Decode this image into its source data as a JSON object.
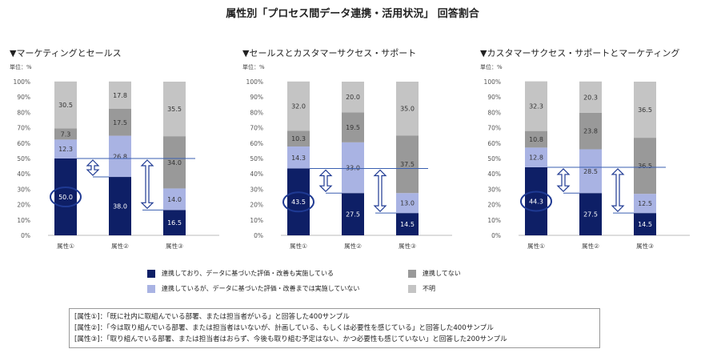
{
  "page_title": "属性別「プロセス間データ連携・活用状況」 回答割合",
  "unit_label": "単位：%",
  "legend": [
    {
      "label": "連携しており、データに基づいた評価・改善も実施している",
      "color": "#0e1f66"
    },
    {
      "label": "連携しているが、データに基づいた評価・改善までは実施していない",
      "color": "#a9b3e3"
    },
    {
      "label": "連携してない",
      "color": "#999999"
    },
    {
      "label": "不明",
      "color": "#c4c4c4"
    }
  ],
  "notes": [
    "[属性①]：「既に社内に取組んでいる部署、または担当者がいる」と回答した400サンプル",
    "[属性②]：「今は取り組んでいる部署、または担当者はいないが、計画している、もしくは必要性を感じている」と回答した400サンプル",
    "[属性③]：「取り組んでいる部署、または担当者はおらず、今後も取り組む予定はない、かつ必要性も感じていない」と回答した200サンプル"
  ],
  "chart_data": [
    {
      "type": "bar",
      "stacked": true,
      "title": "▼マーケティングとセールス",
      "ylabel": "単位：%",
      "ylim": [
        0,
        100
      ],
      "yticks": [
        "0%",
        "10%",
        "20%",
        "30%",
        "40%",
        "50%",
        "60%",
        "70%",
        "80%",
        "90%",
        "100%"
      ],
      "categories": [
        "属性①",
        "属性②",
        "属性③"
      ],
      "series": [
        {
          "name": "連携しており、データに基づいた評価・改善も実施している",
          "values": [
            50.0,
            38.0,
            16.5
          ],
          "labels": [
            "50.0",
            "38.0",
            "16.5"
          ]
        },
        {
          "name": "連携しているが、データに基づいた評価・改善までは実施していない",
          "values": [
            12.3,
            26.8,
            14.0
          ],
          "labels": [
            "12.3",
            "26.8",
            "14.0"
          ]
        },
        {
          "name": "連携してない",
          "values": [
            7.3,
            17.5,
            34.0
          ],
          "labels": [
            "7.3",
            "17.5",
            "34.0"
          ]
        },
        {
          "name": "不明",
          "values": [
            30.5,
            17.8,
            35.5
          ],
          "labels": [
            "30.5",
            "17.8",
            "35.5"
          ]
        }
      ],
      "highlight_category": 0
    },
    {
      "type": "bar",
      "stacked": true,
      "title": "▼セールスとカスタマーサクセス・サポート",
      "ylabel": "単位：%",
      "ylim": [
        0,
        100
      ],
      "yticks": [
        "0%",
        "10%",
        "20%",
        "30%",
        "40%",
        "50%",
        "60%",
        "70%",
        "80%",
        "90%",
        "100%"
      ],
      "categories": [
        "属性①",
        "属性②",
        "属性③"
      ],
      "series": [
        {
          "name": "連携しており、データに基づいた評価・改善も実施している",
          "values": [
            43.5,
            27.5,
            14.5
          ],
          "labels": [
            "43.5",
            "27.5",
            "14.5"
          ]
        },
        {
          "name": "連携しているが、データに基づいた評価・改善までは実施していない",
          "values": [
            14.3,
            33.0,
            13.0
          ],
          "labels": [
            "14.3",
            "33.0",
            "13.0"
          ]
        },
        {
          "name": "連携してない",
          "values": [
            10.3,
            19.5,
            37.5
          ],
          "labels": [
            "10.3",
            "19.5",
            "37.5"
          ]
        },
        {
          "name": "不明",
          "values": [
            32.0,
            20.0,
            35.0
          ],
          "labels": [
            "32.0",
            "20.0",
            "35.0"
          ]
        }
      ],
      "highlight_category": 0
    },
    {
      "type": "bar",
      "stacked": true,
      "title": "▼カスタマーサクセス・サポートとマーケティング",
      "ylabel": "単位：%",
      "ylim": [
        0,
        100
      ],
      "yticks": [
        "0%",
        "10%",
        "20%",
        "30%",
        "40%",
        "50%",
        "60%",
        "70%",
        "80%",
        "90%",
        "100%"
      ],
      "categories": [
        "属性①",
        "属性②",
        "属性③"
      ],
      "series": [
        {
          "name": "連携しており、データに基づいた評価・改善も実施している",
          "values": [
            44.3,
            27.5,
            14.5
          ],
          "labels": [
            "44.3",
            "27.5",
            "14.5"
          ]
        },
        {
          "name": "連携しているが、データに基づいた評価・改善までは実施していない",
          "values": [
            12.8,
            28.5,
            12.5
          ],
          "labels": [
            "12.8",
            "28.5",
            "12.5"
          ]
        },
        {
          "name": "連携してない",
          "values": [
            10.8,
            23.8,
            36.5
          ],
          "labels": [
            "10.8",
            "23.8",
            "36.5"
          ]
        },
        {
          "name": "不明",
          "values": [
            32.3,
            20.3,
            36.5
          ],
          "labels": [
            "32.3",
            "20.3",
            "36.5"
          ]
        }
      ],
      "highlight_category": 0
    }
  ]
}
